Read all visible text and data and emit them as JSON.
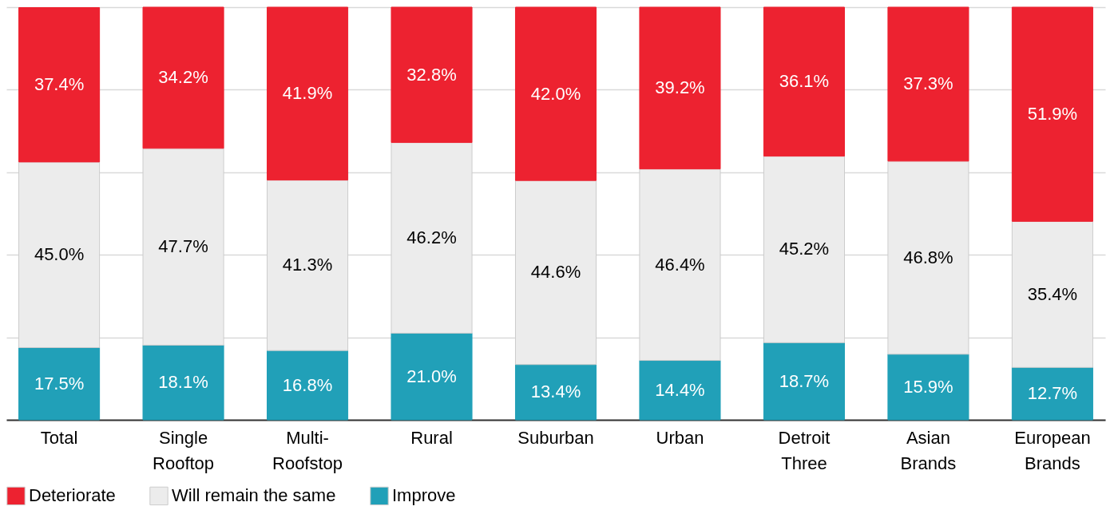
{
  "chart_data": {
    "type": "bar",
    "stacked": true,
    "categories": [
      "Total",
      "Single Rooftop",
      "Multi-Roofstop",
      "Rural",
      "Suburban",
      "Urban",
      "Detroit Three",
      "Asian Brands",
      "European Brands"
    ],
    "series": [
      {
        "name": "Improve",
        "color": "#21a0b8",
        "values": [
          17.5,
          18.1,
          16.8,
          21.0,
          13.4,
          14.4,
          18.7,
          15.9,
          12.7
        ],
        "value_labels": [
          "17.5%",
          "18.1%",
          "16.8%",
          "21.0%",
          "13.4%",
          "14.4%",
          "18.7%",
          "15.9%",
          "12.7%"
        ]
      },
      {
        "name": "Will remain the same",
        "color": "#ececec",
        "values": [
          45.0,
          47.7,
          41.3,
          46.2,
          44.6,
          46.4,
          45.2,
          46.8,
          35.4
        ],
        "value_labels": [
          "45.0%",
          "47.7%",
          "41.3%",
          "46.2%",
          "44.6%",
          "46.4%",
          "45.2%",
          "46.8%",
          "35.4%"
        ]
      },
      {
        "name": "Deteriorate",
        "color": "#ed2230",
        "values": [
          37.4,
          34.2,
          41.9,
          32.8,
          42.0,
          39.2,
          36.1,
          37.3,
          51.9
        ],
        "value_labels": [
          "37.4%",
          "34.2%",
          "41.9%",
          "32.8%",
          "42.0%",
          "39.2%",
          "36.1%",
          "37.3%",
          "51.9%"
        ]
      }
    ],
    "grid": "y",
    "tick_labels": "x",
    "legend": "bottom"
  }
}
